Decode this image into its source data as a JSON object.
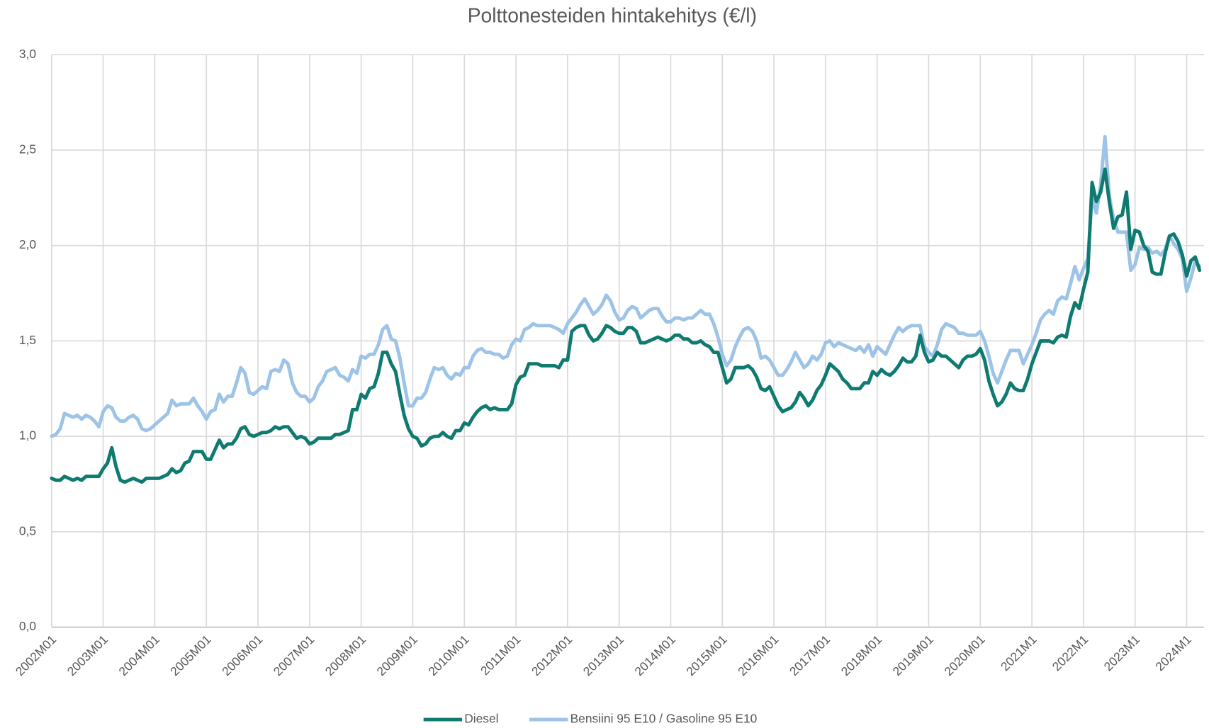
{
  "chart_data": {
    "type": "line",
    "title": "Polttonesteiden hintakehitys (€/l)",
    "categories": [
      "2002M01",
      null,
      null,
      null,
      null,
      null,
      null,
      null,
      null,
      null,
      null,
      null,
      "2003M01",
      null,
      null,
      null,
      null,
      null,
      null,
      null,
      null,
      null,
      null,
      null,
      "2004M01",
      null,
      null,
      null,
      null,
      null,
      null,
      null,
      null,
      null,
      null,
      null,
      "2005M01",
      null,
      null,
      null,
      null,
      null,
      null,
      null,
      null,
      null,
      null,
      null,
      "2006M01",
      null,
      null,
      null,
      null,
      null,
      null,
      null,
      null,
      null,
      null,
      null,
      "2007M01",
      null,
      null,
      null,
      null,
      null,
      null,
      null,
      null,
      null,
      null,
      null,
      "2008M01",
      null,
      null,
      null,
      null,
      null,
      null,
      null,
      null,
      null,
      null,
      null,
      "2009M01",
      null,
      null,
      null,
      null,
      null,
      null,
      null,
      null,
      null,
      null,
      null,
      "2010M01",
      null,
      null,
      null,
      null,
      null,
      null,
      null,
      null,
      null,
      null,
      null,
      "2011M01",
      null,
      null,
      null,
      null,
      null,
      null,
      null,
      null,
      null,
      null,
      null,
      "2012M01",
      null,
      null,
      null,
      null,
      null,
      null,
      null,
      null,
      null,
      null,
      null,
      "2013M01",
      null,
      null,
      null,
      null,
      null,
      null,
      null,
      null,
      null,
      null,
      null,
      "2014M01",
      null,
      null,
      null,
      null,
      null,
      null,
      null,
      null,
      null,
      null,
      null,
      "2015M01",
      null,
      null,
      null,
      null,
      null,
      null,
      null,
      null,
      null,
      null,
      null,
      "2016M01",
      null,
      null,
      null,
      null,
      null,
      null,
      null,
      null,
      null,
      null,
      null,
      "2017M01",
      null,
      null,
      null,
      null,
      null,
      null,
      null,
      null,
      null,
      null,
      null,
      "2018M01",
      null,
      null,
      null,
      null,
      null,
      null,
      null,
      null,
      null,
      null,
      null,
      "2019M01",
      null,
      null,
      null,
      null,
      null,
      null,
      null,
      null,
      null,
      null,
      null,
      "2020M01",
      null,
      null,
      null,
      null,
      null,
      null,
      null,
      null,
      null,
      null,
      null,
      "2021M1",
      null,
      null,
      null,
      null,
      null,
      null,
      null,
      null,
      null,
      null,
      null,
      "2022M1",
      null,
      null,
      null,
      null,
      null,
      null,
      null,
      null,
      null,
      null,
      null,
      "2023M1",
      null,
      null,
      null,
      null,
      null,
      null,
      null,
      null,
      null,
      null,
      null,
      "2024M1",
      null,
      null,
      null
    ],
    "series": [
      {
        "name": "Diesel",
        "color": "#0f7b70",
        "values": [
          0.78,
          0.77,
          0.77,
          0.79,
          0.78,
          0.77,
          0.78,
          0.77,
          0.79,
          0.79,
          0.79,
          0.79,
          0.83,
          0.86,
          0.94,
          0.84,
          0.77,
          0.76,
          0.77,
          0.78,
          0.77,
          0.76,
          0.78,
          0.78,
          0.78,
          0.78,
          0.79,
          0.8,
          0.83,
          0.81,
          0.82,
          0.86,
          0.87,
          0.92,
          0.92,
          0.92,
          0.88,
          0.88,
          0.93,
          0.98,
          0.94,
          0.96,
          0.96,
          0.99,
          1.04,
          1.05,
          1.01,
          1.0,
          1.01,
          1.02,
          1.02,
          1.03,
          1.05,
          1.04,
          1.05,
          1.05,
          1.02,
          0.99,
          1.0,
          0.99,
          0.96,
          0.97,
          0.99,
          0.99,
          0.99,
          0.99,
          1.01,
          1.01,
          1.02,
          1.03,
          1.14,
          1.14,
          1.22,
          1.2,
          1.25,
          1.26,
          1.33,
          1.44,
          1.44,
          1.38,
          1.34,
          1.22,
          1.11,
          1.04,
          1.0,
          0.99,
          0.95,
          0.96,
          0.99,
          1.0,
          1.0,
          1.02,
          1.0,
          0.99,
          1.03,
          1.03,
          1.07,
          1.06,
          1.1,
          1.13,
          1.15,
          1.16,
          1.14,
          1.15,
          1.14,
          1.14,
          1.14,
          1.17,
          1.27,
          1.31,
          1.32,
          1.38,
          1.38,
          1.38,
          1.37,
          1.37,
          1.37,
          1.37,
          1.36,
          1.4,
          1.4,
          1.55,
          1.57,
          1.58,
          1.58,
          1.53,
          1.5,
          1.51,
          1.54,
          1.58,
          1.57,
          1.55,
          1.54,
          1.54,
          1.57,
          1.57,
          1.55,
          1.49,
          1.49,
          1.5,
          1.51,
          1.52,
          1.51,
          1.5,
          1.51,
          1.53,
          1.53,
          1.51,
          1.51,
          1.49,
          1.49,
          1.5,
          1.48,
          1.47,
          1.44,
          1.44,
          1.36,
          1.28,
          1.3,
          1.36,
          1.36,
          1.36,
          1.37,
          1.35,
          1.31,
          1.25,
          1.24,
          1.26,
          1.21,
          1.16,
          1.13,
          1.14,
          1.15,
          1.18,
          1.23,
          1.2,
          1.16,
          1.19,
          1.24,
          1.27,
          1.32,
          1.38,
          1.36,
          1.34,
          1.3,
          1.28,
          1.25,
          1.25,
          1.25,
          1.28,
          1.28,
          1.34,
          1.32,
          1.35,
          1.33,
          1.32,
          1.34,
          1.37,
          1.41,
          1.39,
          1.39,
          1.42,
          1.53,
          1.44,
          1.39,
          1.4,
          1.44,
          1.42,
          1.42,
          1.4,
          1.38,
          1.36,
          1.4,
          1.42,
          1.42,
          1.43,
          1.46,
          1.4,
          1.29,
          1.22,
          1.16,
          1.18,
          1.22,
          1.28,
          1.25,
          1.24,
          1.24,
          1.3,
          1.38,
          1.44,
          1.5,
          1.5,
          1.5,
          1.49,
          1.52,
          1.53,
          1.52,
          1.63,
          1.7,
          1.67,
          1.77,
          1.86,
          2.33,
          2.23,
          2.28,
          2.4,
          2.23,
          2.09,
          2.15,
          2.16,
          2.28,
          1.98,
          2.08,
          2.07,
          2.0,
          1.97,
          1.86,
          1.85,
          1.85,
          1.96,
          2.05,
          2.06,
          2.02,
          1.95,
          1.84,
          1.92,
          1.94,
          1.87
        ]
      },
      {
        "name": "Bensiini 95 E10 / Gasoline 95 E10",
        "color": "#9dc3e6",
        "values": [
          1.0,
          1.01,
          1.04,
          1.12,
          1.11,
          1.1,
          1.11,
          1.09,
          1.11,
          1.1,
          1.08,
          1.05,
          1.13,
          1.16,
          1.15,
          1.1,
          1.08,
          1.08,
          1.1,
          1.11,
          1.09,
          1.04,
          1.03,
          1.04,
          1.06,
          1.08,
          1.1,
          1.12,
          1.19,
          1.16,
          1.17,
          1.17,
          1.17,
          1.2,
          1.16,
          1.13,
          1.09,
          1.13,
          1.14,
          1.22,
          1.18,
          1.21,
          1.21,
          1.28,
          1.36,
          1.33,
          1.23,
          1.22,
          1.24,
          1.26,
          1.25,
          1.34,
          1.35,
          1.34,
          1.4,
          1.38,
          1.28,
          1.23,
          1.21,
          1.21,
          1.18,
          1.2,
          1.26,
          1.29,
          1.34,
          1.35,
          1.36,
          1.32,
          1.31,
          1.29,
          1.35,
          1.33,
          1.42,
          1.41,
          1.43,
          1.43,
          1.48,
          1.56,
          1.58,
          1.51,
          1.5,
          1.41,
          1.28,
          1.16,
          1.16,
          1.2,
          1.2,
          1.23,
          1.3,
          1.36,
          1.35,
          1.36,
          1.32,
          1.3,
          1.33,
          1.32,
          1.36,
          1.36,
          1.42,
          1.45,
          1.46,
          1.44,
          1.44,
          1.43,
          1.43,
          1.41,
          1.42,
          1.48,
          1.51,
          1.5,
          1.56,
          1.57,
          1.59,
          1.58,
          1.58,
          1.58,
          1.58,
          1.57,
          1.56,
          1.54,
          1.59,
          1.62,
          1.65,
          1.69,
          1.72,
          1.68,
          1.64,
          1.66,
          1.69,
          1.74,
          1.71,
          1.65,
          1.61,
          1.62,
          1.66,
          1.68,
          1.67,
          1.62,
          1.64,
          1.66,
          1.67,
          1.67,
          1.63,
          1.6,
          1.6,
          1.62,
          1.62,
          1.61,
          1.62,
          1.62,
          1.64,
          1.66,
          1.64,
          1.64,
          1.59,
          1.52,
          1.43,
          1.37,
          1.4,
          1.47,
          1.52,
          1.56,
          1.57,
          1.55,
          1.5,
          1.41,
          1.42,
          1.4,
          1.36,
          1.32,
          1.32,
          1.35,
          1.39,
          1.44,
          1.4,
          1.36,
          1.38,
          1.42,
          1.4,
          1.43,
          1.49,
          1.5,
          1.47,
          1.49,
          1.48,
          1.47,
          1.46,
          1.45,
          1.47,
          1.44,
          1.48,
          1.42,
          1.47,
          1.45,
          1.43,
          1.48,
          1.53,
          1.57,
          1.55,
          1.57,
          1.58,
          1.58,
          1.58,
          1.47,
          1.44,
          1.42,
          1.48,
          1.56,
          1.59,
          1.58,
          1.57,
          1.54,
          1.54,
          1.53,
          1.53,
          1.53,
          1.55,
          1.5,
          1.42,
          1.33,
          1.28,
          1.34,
          1.4,
          1.45,
          1.45,
          1.45,
          1.38,
          1.43,
          1.48,
          1.54,
          1.61,
          1.64,
          1.66,
          1.64,
          1.71,
          1.73,
          1.72,
          1.8,
          1.89,
          1.82,
          1.88,
          1.93,
          2.25,
          2.17,
          2.32,
          2.57,
          2.26,
          2.14,
          2.07,
          2.07,
          2.07,
          1.87,
          1.9,
          1.99,
          1.98,
          1.99,
          1.96,
          1.97,
          1.95,
          1.98,
          2.05,
          2.01,
          1.98,
          1.93,
          1.76,
          1.83,
          1.92,
          1.89
        ]
      }
    ],
    "ylim": [
      0,
      3
    ],
    "yticks": [
      {
        "value": 0,
        "label": "0,0"
      },
      {
        "value": 0.5,
        "label": "0,5"
      },
      {
        "value": 1,
        "label": "1,0"
      },
      {
        "value": 1.5,
        "label": "1,5"
      },
      {
        "value": 2,
        "label": "2,0"
      },
      {
        "value": 2.5,
        "label": "2,5"
      },
      {
        "value": 3,
        "label": "3,0"
      }
    ],
    "grid": true,
    "legend": "bottom"
  }
}
